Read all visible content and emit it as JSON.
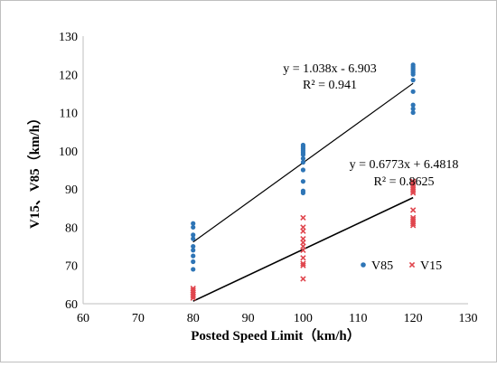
{
  "chart_data": {
    "type": "scatter",
    "title": "",
    "xlabel": "Posted  Speed Limit（km/h）",
    "ylabel": "V15、V85（km/h）",
    "xlim": [
      60,
      130
    ],
    "ylim": [
      60,
      130
    ],
    "x_ticks": [
      "60",
      "70",
      "80",
      "90",
      "100",
      "110",
      "120",
      "130"
    ],
    "y_ticks": [
      "60",
      "70",
      "80",
      "90",
      "100",
      "110",
      "120",
      "130"
    ],
    "grid": false,
    "legend_position": "inside lower right",
    "series": [
      {
        "name": "V85",
        "marker": "circle",
        "color": "#2E75B6",
        "points": [
          [
            80,
            81
          ],
          [
            80,
            80
          ],
          [
            80,
            78
          ],
          [
            80,
            77
          ],
          [
            80,
            75
          ],
          [
            80,
            74
          ],
          [
            80,
            72.5
          ],
          [
            80,
            71
          ],
          [
            80,
            69
          ],
          [
            100,
            101.5
          ],
          [
            100,
            101
          ],
          [
            100,
            100.5
          ],
          [
            100,
            100
          ],
          [
            100,
            99.5
          ],
          [
            100,
            99
          ],
          [
            100,
            98
          ],
          [
            100,
            97
          ],
          [
            100,
            95
          ],
          [
            100,
            92
          ],
          [
            100,
            89.5
          ],
          [
            100,
            89
          ],
          [
            120,
            122.5
          ],
          [
            120,
            122
          ],
          [
            120,
            121.5
          ],
          [
            120,
            121
          ],
          [
            120,
            120.5
          ],
          [
            120,
            120
          ],
          [
            120,
            118.5
          ],
          [
            120,
            115.5
          ],
          [
            120,
            112
          ],
          [
            120,
            111
          ],
          [
            120,
            110
          ]
        ],
        "trendline": {
          "slope": 1.038,
          "intercept": -6.903,
          "equation": "y = 1.038x - 6.903",
          "r2": "R² = 0.941"
        }
      },
      {
        "name": "V15",
        "marker": "x",
        "color": "#E0464E",
        "points": [
          [
            80,
            64
          ],
          [
            80,
            63.5
          ],
          [
            80,
            63
          ],
          [
            80,
            62.5
          ],
          [
            80,
            62
          ],
          [
            80,
            61.5
          ],
          [
            100,
            82.5
          ],
          [
            100,
            80
          ],
          [
            100,
            79
          ],
          [
            100,
            77
          ],
          [
            100,
            76
          ],
          [
            100,
            75
          ],
          [
            100,
            74
          ],
          [
            100,
            72
          ],
          [
            100,
            70.5
          ],
          [
            100,
            70
          ],
          [
            100,
            66.5
          ],
          [
            120,
            92
          ],
          [
            120,
            91.5
          ],
          [
            120,
            91
          ],
          [
            120,
            90.5
          ],
          [
            120,
            90
          ],
          [
            120,
            89.5
          ],
          [
            120,
            89
          ],
          [
            120,
            84.5
          ],
          [
            120,
            82.5
          ],
          [
            120,
            82
          ],
          [
            120,
            81.5
          ],
          [
            120,
            81
          ],
          [
            120,
            80.5
          ]
        ],
        "trendline": {
          "slope": 0.6773,
          "intercept": 6.4818,
          "equation": "y = 0.6773x + 6.4818",
          "r2": "R² = 0.8625"
        }
      }
    ]
  }
}
